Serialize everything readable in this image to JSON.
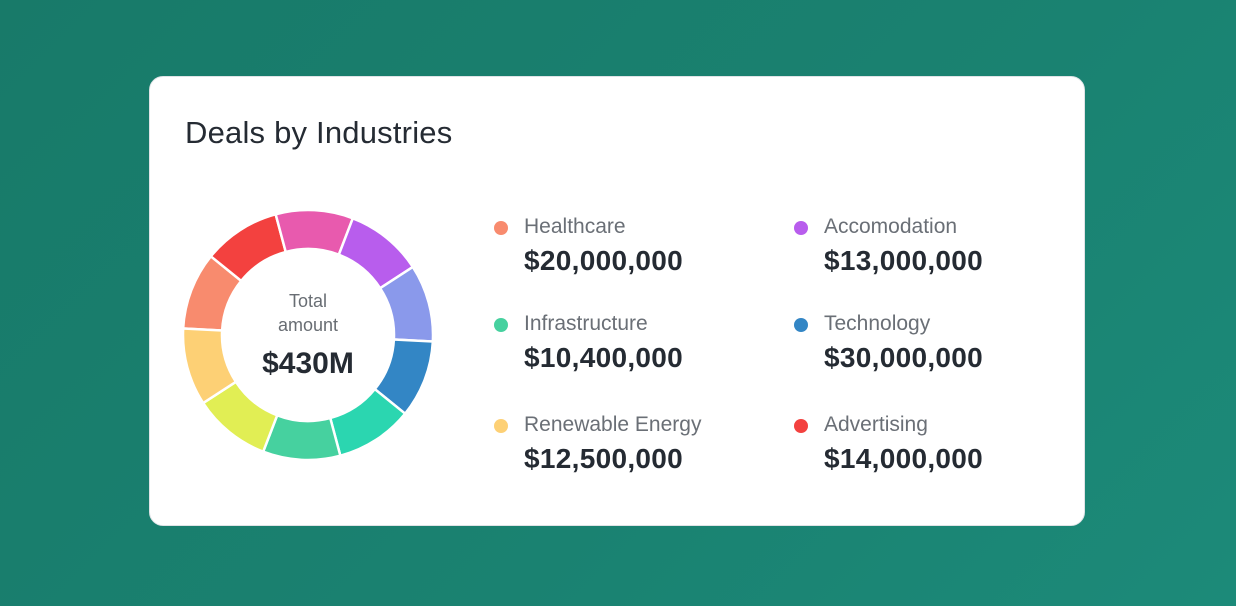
{
  "card": {
    "title": "Deals by Industries"
  },
  "chart_data": {
    "type": "pie",
    "variant": "donut",
    "title": "Deals by Industries",
    "center_label_line1": "Total",
    "center_label_line2": "amount",
    "center_value": "$430M",
    "segments": [
      {
        "color": "#f88b6e"
      },
      {
        "color": "#f3413f"
      },
      {
        "color": "#e85aae"
      },
      {
        "color": "#b85ded"
      },
      {
        "color": "#8a99eb"
      },
      {
        "color": "#3386c5"
      },
      {
        "color": "#2bd6b0"
      },
      {
        "color": "#46d19f"
      },
      {
        "color": "#e1ee54"
      },
      {
        "color": "#fdd075"
      }
    ],
    "legend": [
      {
        "name": "Healthcare",
        "value": "$20,000,000",
        "color": "#f88b6e"
      },
      {
        "name": "Accomodation",
        "value": "$13,000,000",
        "color": "#b85ded"
      },
      {
        "name": "Infrastructure",
        "value": "$10,400,000",
        "color": "#46d19f"
      },
      {
        "name": "Technology",
        "value": "$30,000,000",
        "color": "#3386c5"
      },
      {
        "name": "Renewable Energy",
        "value": "$12,500,000",
        "color": "#fdd075"
      },
      {
        "name": "Advertising",
        "value": "$14,000,000",
        "color": "#f3413f"
      }
    ]
  }
}
